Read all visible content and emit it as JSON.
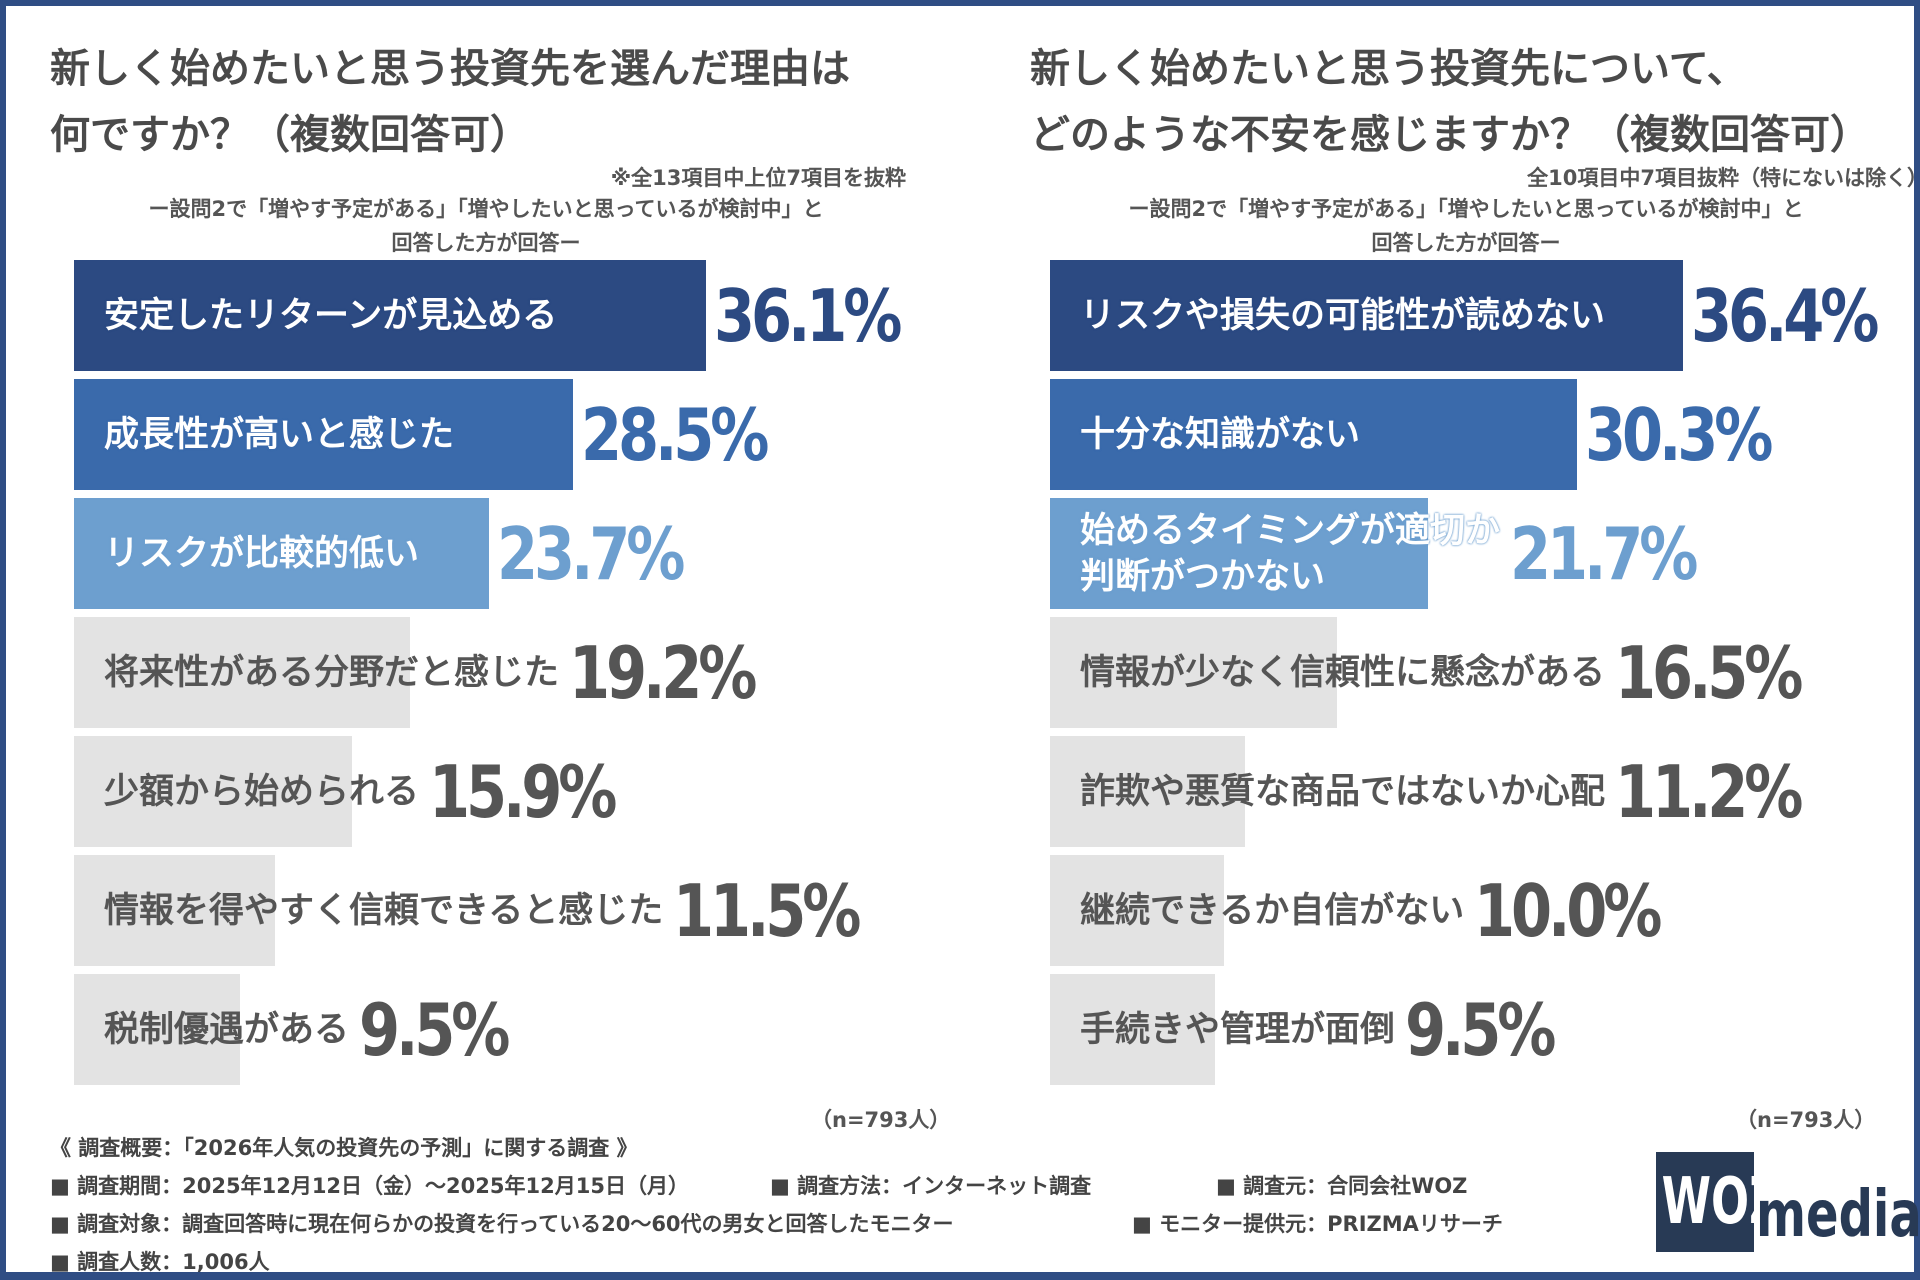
{
  "colors": {
    "frame": "#2f4d84",
    "rank1": "#2c4a82",
    "rank2": "#3a6aab",
    "rank3": "#6d9fcf",
    "other": "#e3e3e3",
    "other_text": "#555555"
  },
  "chart_data": [
    {
      "type": "bar",
      "orientation": "horizontal",
      "title_lines": [
        "新しく始めたいと思う投資先を選んだ理由は",
        "何ですか？（複数回答可）"
      ],
      "note": "※全13項目中上位7項目を抜粋",
      "subtitle_lines": [
        "ー設問2で「増やす予定がある」「増やしたいと思っているが検討中」と",
        "回答した方が回答ー"
      ],
      "categories": [
        [
          "安定したリターンが見込める"
        ],
        [
          "成長性が高いと感じた"
        ],
        [
          "リスクが比較的低い"
        ],
        [
          "将来性がある分野だと感じた"
        ],
        [
          "少額から始められる"
        ],
        [
          "情報を得やすく信頼できると感じた"
        ],
        [
          "税制優遇がある"
        ]
      ],
      "values": [
        36.1,
        28.5,
        23.7,
        19.2,
        15.9,
        11.5,
        9.5
      ],
      "labels": [
        "36.1%",
        "28.5%",
        "23.7%",
        "19.2%",
        "15.9%",
        "11.5%",
        "9.5%"
      ],
      "n": "（n=793人）"
    },
    {
      "type": "bar",
      "orientation": "horizontal",
      "title_lines": [
        "新しく始めたいと思う投資先について、",
        "どのような不安を感じますか？（複数回答可）"
      ],
      "note": "全10項目中7項目抜粋（特にないは除く）",
      "subtitle_lines": [
        "ー設問2で「増やす予定がある」「増やしたいと思っているが検討中」と",
        "回答した方が回答ー"
      ],
      "categories": [
        [
          "リスクや損失の可能性が読めない"
        ],
        [
          "十分な知識がない"
        ],
        [
          "始めるタイミングが適切か",
          "判断がつかない"
        ],
        [
          "情報が少なく信頼性に懸念がある"
        ],
        [
          "詐欺や悪質な商品ではないか心配"
        ],
        [
          "継続できるか自信がない"
        ],
        [
          "手続きや管理が面倒"
        ]
      ],
      "values": [
        36.4,
        30.3,
        21.7,
        16.5,
        11.2,
        10.0,
        9.5
      ],
      "labels": [
        "36.4%",
        "30.3%",
        "21.7%",
        "16.5%",
        "11.2%",
        "10.0%",
        "9.5%"
      ],
      "n": "（n=793人）"
    }
  ],
  "footer": {
    "overview": "《 調査概要：「2026年人気の投資先の予測」に関する調査 》",
    "period": "■ 調査期間：2025年12月12日（金）～2025年12月15日（月）",
    "method": "■ 調査方法：インターネット調査",
    "org": "■ 調査元：合同会社WOZ",
    "target": "■ 調査対象：調査回答時に現在何らかの投資を行っている20～60代の男女と回答したモニター",
    "provider": "■ モニター提供元：PRIZMAリサーチ",
    "count": "■ 調査人数：1,006人"
  },
  "logo": {
    "mark": "WOZ",
    "text": "media"
  }
}
